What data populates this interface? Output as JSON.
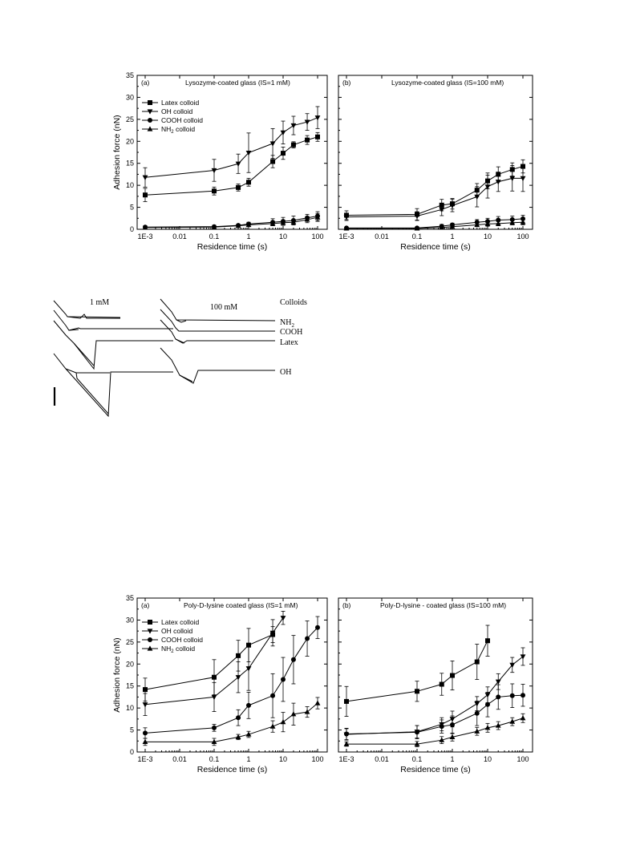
{
  "chart_data": [
    {
      "type": "line",
      "panel_label": "(a)",
      "title": "Lysozyme-coated glass (IS=1 mM)",
      "xlabel": "Residence time (s)",
      "ylabel": "Adhesion force (nN)",
      "xscale": "log",
      "xlim": [
        0.001,
        100
      ],
      "ylim": [
        0,
        35
      ],
      "x_tick_labels": [
        "1E-3",
        "0.01",
        "0.1",
        "1",
        "10",
        "100"
      ],
      "y_tick_labels": [
        "0",
        "5",
        "10",
        "15",
        "20",
        "25",
        "30",
        "35"
      ],
      "legend": {
        "position": "top-left",
        "entries": [
          "Latex colloid",
          "OH colloid",
          "COOH colloid",
          "NH2 colloid"
        ]
      },
      "x": [
        0.001,
        0.1,
        0.5,
        1,
        5,
        10,
        20,
        50,
        100
      ],
      "series": [
        {
          "name": "Latex colloid",
          "marker": "square",
          "values": [
            7.8,
            8.7,
            9.5,
            10.7,
            15.4,
            17.3,
            19.2,
            20.3,
            21.0
          ],
          "errors": [
            1.5,
            0.9,
            0.8,
            0.9,
            1.4,
            1.4,
            0.7,
            1.0,
            1.0
          ]
        },
        {
          "name": "OH colloid",
          "marker": "triangle-down",
          "values": [
            11.8,
            13.4,
            14.9,
            17.4,
            19.5,
            22.0,
            23.6,
            24.4,
            25.4
          ],
          "errors": [
            2.2,
            2.5,
            2.2,
            4.5,
            3.4,
            2.6,
            2.1,
            1.9,
            2.5
          ]
        },
        {
          "name": "COOH colloid",
          "marker": "circle",
          "values": [
            0.5,
            0.6,
            0.9,
            1.2,
            1.6,
            1.8,
            2.0,
            2.6,
            3.0
          ],
          "errors": [
            0.3,
            0.3,
            0.3,
            0.4,
            0.8,
            0.9,
            1.0,
            0.8,
            1.0
          ]
        },
        {
          "name": "NH2 colloid",
          "marker": "triangle-up",
          "values": [
            0.4,
            0.5,
            0.8,
            1.0,
            1.3,
            1.5,
            1.6,
            2.2,
            2.7
          ],
          "errors": [
            0.2,
            0.3,
            0.3,
            0.4,
            0.5,
            0.6,
            0.6,
            0.7,
            0.9
          ]
        }
      ]
    },
    {
      "type": "line",
      "panel_label": "(b)",
      "title": "Lysozyme-coated glass (IS=100 mM)",
      "xlabel": "Residence time (s)",
      "ylabel": "",
      "xscale": "log",
      "xlim": [
        0.001,
        100
      ],
      "ylim": [
        0,
        35
      ],
      "x_tick_labels": [
        "1E-3",
        "0.01",
        "0.1",
        "1",
        "10",
        "100"
      ],
      "x": [
        0.001,
        0.1,
        0.5,
        1,
        5,
        10,
        20,
        50,
        100
      ],
      "series": [
        {
          "name": "Latex colloid",
          "marker": "square",
          "values": [
            3.2,
            3.4,
            5.5,
            5.8,
            8.9,
            11.0,
            12.5,
            13.6,
            14.3
          ],
          "errors": [
            1.0,
            1.3,
            1.3,
            1.2,
            1.5,
            1.8,
            1.7,
            1.5,
            1.5
          ]
        },
        {
          "name": "OH colloid",
          "marker": "triangle-down",
          "values": [
            2.8,
            3.0,
            4.5,
            5.4,
            7.4,
            9.7,
            10.8,
            11.6,
            11.6
          ],
          "errors": [
            0.8,
            1.0,
            1.4,
            1.4,
            2.3,
            2.6,
            2.2,
            2.9,
            3.0
          ]
        },
        {
          "name": "COOH colloid",
          "marker": "circle",
          "values": [
            0.3,
            0.3,
            0.7,
            1.0,
            1.6,
            1.8,
            2.1,
            2.2,
            2.4
          ],
          "errors": [
            0.2,
            0.2,
            0.4,
            0.4,
            0.6,
            0.7,
            0.8,
            0.8,
            0.8
          ]
        },
        {
          "name": "NH2 colloid",
          "marker": "triangle-up",
          "values": [
            0.2,
            0.2,
            0.4,
            0.6,
            1.0,
            1.2,
            1.3,
            1.5,
            1.6
          ],
          "errors": [
            0.1,
            0.1,
            0.2,
            0.3,
            0.4,
            0.5,
            0.5,
            0.5,
            0.6
          ]
        }
      ]
    },
    {
      "type": "line",
      "panel_label": "(a)",
      "title": "Poly-D-lysine coated glass (IS=1 mM)",
      "xlabel": "Residence time (s)",
      "ylabel": "Adhesion force (nN)",
      "xscale": "log",
      "xlim": [
        0.001,
        100
      ],
      "ylim": [
        0,
        35
      ],
      "x_tick_labels": [
        "1E-3",
        "0.01",
        "0.1",
        "1",
        "10",
        "100"
      ],
      "y_tick_labels": [
        "0",
        "5",
        "10",
        "15",
        "20",
        "25",
        "30",
        "35"
      ],
      "legend": {
        "position": "top-left",
        "entries": [
          "Latex colloid",
          "OH colloid",
          "COOH colloid",
          "NH2 colloid"
        ]
      },
      "series": [
        {
          "name": "Latex colloid",
          "marker": "square",
          "x": [
            0.001,
            0.1,
            0.5,
            1,
            5
          ],
          "values": [
            14.2,
            17.0,
            21.9,
            24.3,
            26.7
          ],
          "errors": [
            2.6,
            4.0,
            3.5,
            3.8,
            1.8
          ]
        },
        {
          "name": "OH colloid",
          "marker": "triangle-down",
          "x": [
            0.001,
            0.1,
            0.5,
            1,
            5,
            10
          ],
          "values": [
            10.8,
            12.5,
            17.0,
            19.0,
            27.1,
            30.5
          ],
          "errors": [
            2.5,
            3.3,
            3.5,
            5.0,
            3.0,
            1.5
          ]
        },
        {
          "name": "COOH colloid",
          "marker": "circle",
          "x": [
            0.001,
            0.1,
            0.5,
            1,
            5,
            10,
            20,
            50,
            100
          ],
          "values": [
            4.3,
            5.5,
            7.8,
            10.6,
            12.8,
            16.5,
            21.0,
            25.8,
            28.3
          ],
          "errors": [
            1.2,
            0.8,
            1.8,
            3.0,
            5.0,
            5.0,
            5.5,
            4.0,
            2.5
          ]
        },
        {
          "name": "NH2 colloid",
          "marker": "triangle-up",
          "x": [
            0.001,
            0.1,
            0.5,
            1,
            5,
            10,
            20,
            50,
            100
          ],
          "values": [
            2.3,
            2.3,
            3.4,
            4.0,
            5.8,
            6.8,
            8.6,
            9.1,
            11.1
          ],
          "errors": [
            0.8,
            0.8,
            0.6,
            0.7,
            1.3,
            2.2,
            2.5,
            1.2,
            1.3
          ]
        }
      ]
    },
    {
      "type": "line",
      "panel_label": "(b)",
      "title": "Poly-D-lysine - coated glass (IS=100 mM)",
      "xlabel": "Residence time (s)",
      "ylabel": "",
      "xscale": "log",
      "xlim": [
        0.001,
        100
      ],
      "ylim": [
        0,
        35
      ],
      "x_tick_labels": [
        "1E-3",
        "0.01",
        "0.1",
        "1",
        "10",
        "100"
      ],
      "series": [
        {
          "name": "Latex colloid",
          "marker": "square",
          "x": [
            0.001,
            0.1,
            0.5,
            1,
            5,
            10
          ],
          "values": [
            11.5,
            13.8,
            15.4,
            17.4,
            20.5,
            25.3
          ],
          "errors": [
            3.4,
            2.3,
            2.5,
            3.3,
            4.0,
            3.5
          ]
        },
        {
          "name": "OH colloid",
          "marker": "triangle-down",
          "x": [
            0.001,
            0.1,
            0.5,
            1,
            5,
            10,
            20,
            50,
            100
          ],
          "values": [
            4.0,
            4.6,
            6.3,
            7.5,
            11.0,
            13.0,
            16.0,
            19.8,
            21.7
          ],
          "errors": [
            1.3,
            1.4,
            1.5,
            1.8,
            1.6,
            1.8,
            1.8,
            1.7,
            2.0
          ]
        },
        {
          "name": "COOH colloid",
          "marker": "circle",
          "x": [
            0.001,
            0.1,
            0.5,
            1,
            5,
            10,
            20,
            50,
            100
          ],
          "values": [
            4.1,
            4.5,
            5.8,
            6.2,
            8.8,
            10.8,
            12.5,
            12.8,
            12.9
          ],
          "errors": [
            1.3,
            1.5,
            1.5,
            2.0,
            2.8,
            2.8,
            2.8,
            2.7,
            2.5
          ]
        },
        {
          "name": "NH2 colloid",
          "marker": "triangle-up",
          "x": [
            0.001,
            0.1,
            0.5,
            1,
            5,
            10,
            20,
            50,
            100
          ],
          "values": [
            1.8,
            1.8,
            2.7,
            3.4,
            4.7,
            5.5,
            6.0,
            6.9,
            7.7
          ],
          "errors": [
            0.5,
            0.6,
            0.8,
            0.9,
            0.9,
            1.0,
            0.9,
            0.9,
            1.0
          ]
        }
      ]
    }
  ],
  "force_curves": {
    "header_left": "1 mM",
    "header_right": "100 mM",
    "colloids_label": "Colloids",
    "curve_labels": [
      "NH2",
      "COOH",
      "Latex",
      "OH"
    ],
    "nh2_main": "NH",
    "nh2_sub": "2"
  }
}
